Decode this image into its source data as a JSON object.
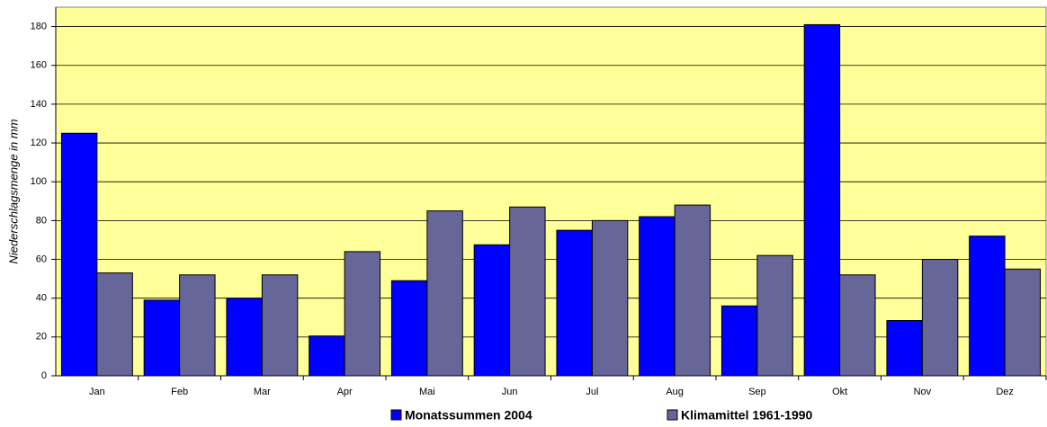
{
  "chart_data": {
    "type": "bar",
    "y_label": "Niederschlagsmenge in mm",
    "categories": [
      "Jan",
      "Feb",
      "Mar",
      "Apr",
      "Mai",
      "Jun",
      "Jul",
      "Aug",
      "Sep",
      "Okt",
      "Nov",
      "Dez"
    ],
    "series": [
      {
        "name": "Monatssummen 2004",
        "color": "#0000ff",
        "values": [
          125,
          39,
          40,
          20.5,
          49,
          67.5,
          75,
          82,
          36,
          181,
          28.5,
          72
        ]
      },
      {
        "name": "Klimamittel 1961-1990",
        "color": "#666699",
        "values": [
          53,
          52,
          52,
          64,
          85,
          87,
          80,
          88,
          62,
          52,
          60,
          55
        ]
      }
    ],
    "ylim": [
      0,
      190
    ],
    "yticks": [
      0,
      20,
      40,
      60,
      80,
      100,
      120,
      140,
      160,
      180
    ],
    "grid": true,
    "plot_background": "#ffff99",
    "legend": "bottom"
  }
}
